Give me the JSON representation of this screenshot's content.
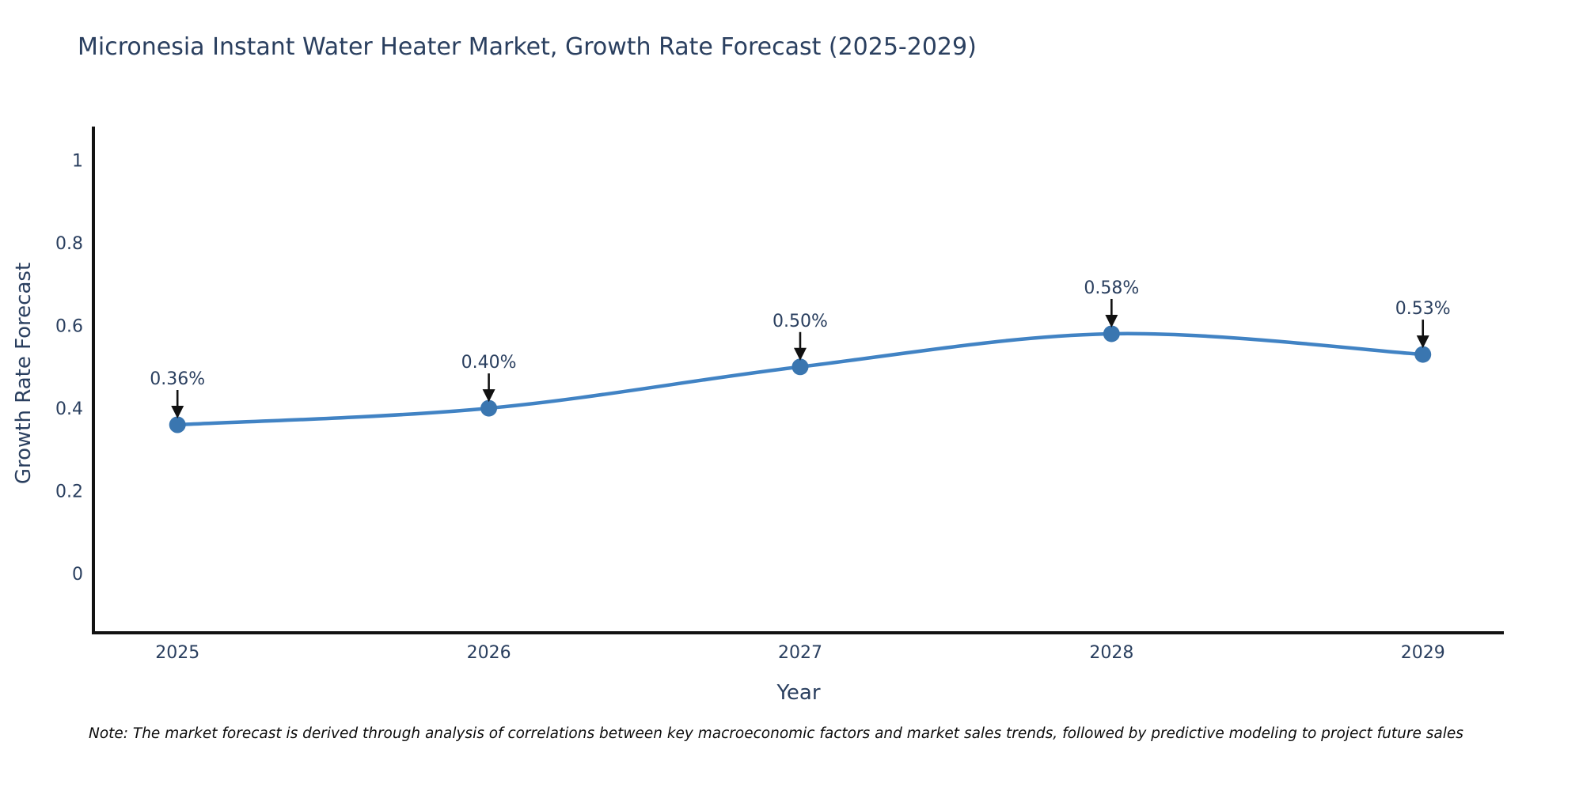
{
  "page": {
    "background_color": "#ffffff"
  },
  "chart_data": {
    "type": "line",
    "title": "Micronesia Instant Water Heater Market, Growth Rate Forecast (2025-2029)",
    "xlabel": "Year",
    "ylabel": "Growth Rate Forecast",
    "categories": [
      2025,
      2026,
      2027,
      2028,
      2029
    ],
    "x_tick_labels": [
      "2025",
      "2026",
      "2027",
      "2028",
      "2029"
    ],
    "series": [
      {
        "name": "Growth Rate Forecast",
        "values": [
          0.36,
          0.4,
          0.5,
          0.58,
          0.53
        ]
      }
    ],
    "point_labels": [
      "0.36%",
      "0.40%",
      "0.50%",
      "0.58%",
      "0.53%"
    ],
    "yticks": [
      0,
      0.2,
      0.4,
      0.6,
      0.8,
      1
    ],
    "ytick_labels": [
      "0",
      "0.2",
      "0.4",
      "0.6",
      "0.8",
      "1"
    ],
    "xlim": [
      2024.73,
      2029.26
    ],
    "ylim": [
      -0.143,
      1.081
    ],
    "grid": false,
    "legend_position": "none",
    "line_shape": "spline",
    "colors": {
      "line": "#4183c4",
      "marker": "#3a76b0",
      "axis": "#121212",
      "text": "#2a3f5f",
      "annotation_arrow": "#111111"
    },
    "note": "Note: The market forecast is derived through analysis of correlations between key macroeconomic factors and market sales trends, followed by predictive modeling to project future sales"
  }
}
